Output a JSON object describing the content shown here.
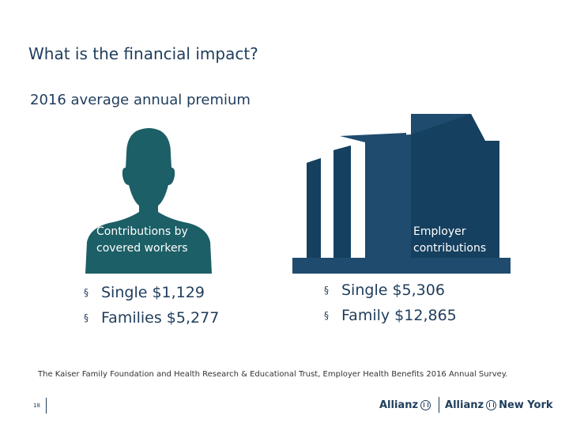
{
  "slide": {
    "title": "What is the financial impact?",
    "subtitle": "2016 average annual premium",
    "page_number": "18"
  },
  "colors": {
    "text": "#1f3d5c",
    "person": "#1c5f66",
    "building": "#1f4b6e",
    "building_dark": "#16405f"
  },
  "workers": {
    "icon": "person-silhouette-icon",
    "label_line1": "Contributions by",
    "label_line2": "covered workers",
    "items": [
      {
        "bullet": "§",
        "text": "Single $1,129"
      },
      {
        "bullet": "§",
        "text": "Families $5,277"
      }
    ]
  },
  "employer": {
    "icon": "office-building-icon",
    "label_line1": "Employer",
    "label_line2": "contributions",
    "items": [
      {
        "bullet": "§",
        "text": "Single $5,306"
      },
      {
        "bullet": "§",
        "text": "Family $12,865"
      }
    ]
  },
  "source": "The Kaiser Family Foundation and Health Research & Educational Trust, Employer Health Benefits 2016 Annual Survey.",
  "footer": {
    "logo_left": "Allianz",
    "logo_right_brand": "Allianz",
    "logo_right_suffix": "New York"
  }
}
